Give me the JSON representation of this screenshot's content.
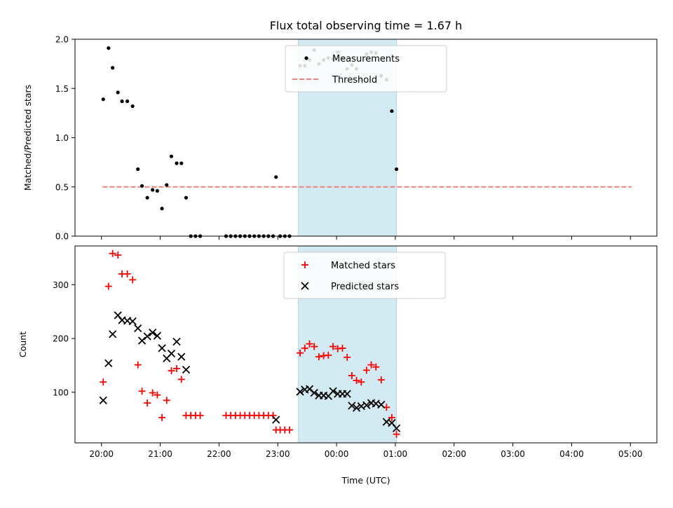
{
  "title": "Flux total observing time = 1.67 h",
  "colors": {
    "measurement": "#000000",
    "threshold": "#f08080",
    "matched": "#ff0000",
    "predicted": "#000000",
    "highlight": "#add8e6"
  },
  "chart_data": [
    {
      "type": "scatter",
      "ylabel": "Matched/Predicted stars",
      "xlabel": "",
      "ylim": [
        0,
        2.0
      ],
      "xlim": [
        -0.45,
        9.45
      ],
      "x_unit": "hours since 20:00 UTC",
      "yticks": [
        "0.0",
        "0.5",
        "1.0",
        "1.5",
        "2.0"
      ],
      "ytick_values": [
        0,
        0.5,
        1.0,
        1.5,
        2.0
      ],
      "highlight_span": [
        3.35,
        5.02
      ],
      "legend": {
        "position": "upper center",
        "entries": [
          "Measurements",
          "Threshold"
        ]
      },
      "threshold": {
        "value": 0.5,
        "x_range": [
          0.02,
          9.02
        ]
      },
      "series": [
        {
          "name": "Measurements",
          "marker": "dot",
          "points": [
            [
              0.03,
              1.39
            ],
            [
              0.12,
              1.91
            ],
            [
              0.19,
              1.71
            ],
            [
              0.28,
              1.46
            ],
            [
              0.35,
              1.37
            ],
            [
              0.44,
              1.37
            ],
            [
              0.53,
              1.32
            ],
            [
              0.62,
              0.68
            ],
            [
              0.69,
              0.51
            ],
            [
              0.78,
              0.39
            ],
            [
              0.87,
              0.47
            ],
            [
              0.95,
              0.46
            ],
            [
              1.03,
              0.28
            ],
            [
              1.11,
              0.52
            ],
            [
              1.19,
              0.81
            ],
            [
              1.28,
              0.74
            ],
            [
              1.36,
              0.74
            ],
            [
              1.44,
              0.39
            ],
            [
              1.52,
              0.0
            ],
            [
              1.6,
              0.0
            ],
            [
              1.68,
              0.0
            ],
            [
              2.12,
              0.0
            ],
            [
              2.2,
              0.0
            ],
            [
              2.28,
              0.0
            ],
            [
              2.36,
              0.0
            ],
            [
              2.44,
              0.0
            ],
            [
              2.52,
              0.0
            ],
            [
              2.6,
              0.0
            ],
            [
              2.68,
              0.0
            ],
            [
              2.76,
              0.0
            ],
            [
              2.84,
              0.0
            ],
            [
              2.92,
              0.0
            ],
            [
              2.97,
              0.6
            ],
            [
              3.04,
              0.0
            ],
            [
              3.12,
              0.0
            ],
            [
              3.2,
              0.0
            ],
            [
              3.38,
              1.73
            ],
            [
              3.46,
              1.73
            ],
            [
              3.54,
              1.79
            ],
            [
              3.62,
              1.89
            ],
            [
              3.7,
              1.75
            ],
            [
              3.78,
              1.79
            ],
            [
              3.86,
              1.81
            ],
            [
              3.94,
              1.8
            ],
            [
              4.02,
              1.87
            ],
            [
              4.1,
              1.81
            ],
            [
              4.18,
              1.7
            ],
            [
              4.26,
              1.74
            ],
            [
              4.34,
              1.7
            ],
            [
              4.42,
              1.59
            ],
            [
              4.51,
              1.85
            ],
            [
              4.59,
              1.87
            ],
            [
              4.67,
              1.86
            ],
            [
              4.76,
              1.63
            ],
            [
              4.85,
              1.59
            ],
            [
              4.94,
              1.27
            ],
            [
              5.02,
              0.68
            ]
          ]
        }
      ]
    },
    {
      "type": "scatter",
      "ylabel": "Count",
      "xlabel": "Time (UTC)",
      "ylim": [
        6,
        372
      ],
      "xlim": [
        -0.45,
        9.45
      ],
      "x_unit": "hours since 20:00 UTC",
      "yticks": [
        "100",
        "200",
        "300"
      ],
      "ytick_values": [
        100,
        200,
        300
      ],
      "xticks": [
        "20:00",
        "21:00",
        "22:00",
        "23:00",
        "00:00",
        "01:00",
        "02:00",
        "03:00",
        "04:00",
        "05:00"
      ],
      "xtick_values": [
        0,
        1,
        2,
        3,
        4,
        5,
        6,
        7,
        8,
        9
      ],
      "highlight_span": [
        3.35,
        5.02
      ],
      "legend": {
        "position": "upper center",
        "entries": [
          "Matched stars",
          "Predicted stars"
        ]
      },
      "series": [
        {
          "name": "Matched stars",
          "marker": "plus",
          "points": [
            [
              0.03,
              119
            ],
            [
              0.12,
              297
            ],
            [
              0.19,
              358
            ],
            [
              0.28,
              355
            ],
            [
              0.35,
              320
            ],
            [
              0.44,
              320
            ],
            [
              0.53,
              309
            ],
            [
              0.62,
              151
            ],
            [
              0.69,
              102
            ],
            [
              0.78,
              80
            ],
            [
              0.87,
              99
            ],
            [
              0.95,
              95
            ],
            [
              1.03,
              53
            ],
            [
              1.11,
              85
            ],
            [
              1.19,
              140
            ],
            [
              1.28,
              144
            ],
            [
              1.36,
              124
            ],
            [
              1.44,
              57
            ],
            [
              1.52,
              57
            ],
            [
              1.6,
              57
            ],
            [
              1.68,
              57
            ],
            [
              2.12,
              57
            ],
            [
              2.2,
              57
            ],
            [
              2.28,
              57
            ],
            [
              2.36,
              57
            ],
            [
              2.44,
              57
            ],
            [
              2.52,
              57
            ],
            [
              2.6,
              57
            ],
            [
              2.68,
              57
            ],
            [
              2.76,
              57
            ],
            [
              2.84,
              57
            ],
            [
              2.92,
              57
            ],
            [
              2.97,
              30
            ],
            [
              3.04,
              30
            ],
            [
              3.12,
              30
            ],
            [
              3.2,
              30
            ],
            [
              3.38,
              173
            ],
            [
              3.46,
              182
            ],
            [
              3.54,
              190
            ],
            [
              3.62,
              185
            ],
            [
              3.7,
              166
            ],
            [
              3.78,
              168
            ],
            [
              3.86,
              169
            ],
            [
              3.94,
              185
            ],
            [
              4.02,
              181
            ],
            [
              4.1,
              182
            ],
            [
              4.18,
              165
            ],
            [
              4.26,
              131
            ],
            [
              4.34,
              122
            ],
            [
              4.42,
              119
            ],
            [
              4.51,
              141
            ],
            [
              4.59,
              151
            ],
            [
              4.67,
              147
            ],
            [
              4.76,
              123
            ],
            [
              4.85,
              72
            ],
            [
              4.94,
              53
            ],
            [
              5.02,
              22
            ]
          ]
        },
        {
          "name": "Predicted stars",
          "marker": "x",
          "points": [
            [
              0.03,
              85
            ],
            [
              0.12,
              154
            ],
            [
              0.19,
              208
            ],
            [
              0.28,
              243
            ],
            [
              0.35,
              234
            ],
            [
              0.44,
              233
            ],
            [
              0.53,
              232
            ],
            [
              0.62,
              219
            ],
            [
              0.69,
              196
            ],
            [
              0.78,
              204
            ],
            [
              0.87,
              211
            ],
            [
              0.95,
              205
            ],
            [
              1.03,
              182
            ],
            [
              1.11,
              163
            ],
            [
              1.19,
              172
            ],
            [
              1.28,
              194
            ],
            [
              1.36,
              166
            ],
            [
              1.44,
              142
            ],
            [
              2.97,
              49
            ],
            [
              3.38,
              101
            ],
            [
              3.46,
              105
            ],
            [
              3.54,
              106
            ],
            [
              3.62,
              99
            ],
            [
              3.7,
              94
            ],
            [
              3.78,
              94
            ],
            [
              3.86,
              93
            ],
            [
              3.94,
              102
            ],
            [
              4.02,
              97
            ],
            [
              4.1,
              97
            ],
            [
              4.18,
              97
            ],
            [
              4.26,
              75
            ],
            [
              4.34,
              71
            ],
            [
              4.42,
              74
            ],
            [
              4.51,
              76
            ],
            [
              4.59,
              80
            ],
            [
              4.67,
              79
            ],
            [
              4.76,
              77
            ],
            [
              4.85,
              45
            ],
            [
              4.94,
              43
            ],
            [
              5.02,
              33
            ]
          ]
        }
      ]
    }
  ]
}
